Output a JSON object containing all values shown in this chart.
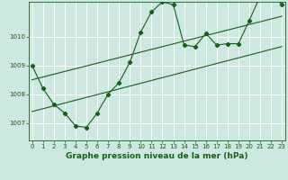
{
  "title": "Graphe pression niveau de la mer (hPa)",
  "bg_color": "#cce8e0",
  "grid_color": "#ffffff",
  "line_color": "#1a5c1a",
  "x_ticks": [
    0,
    1,
    2,
    3,
    4,
    5,
    6,
    7,
    8,
    9,
    10,
    11,
    12,
    13,
    14,
    15,
    16,
    17,
    18,
    19,
    20,
    21,
    22,
    23
  ],
  "y_ticks": [
    1007,
    1008,
    1009,
    1010
  ],
  "ylim": [
    1006.4,
    1011.2
  ],
  "xlim": [
    -0.3,
    23.3
  ],
  "data_x": [
    0,
    1,
    2,
    3,
    4,
    5,
    6,
    7,
    8,
    9,
    10,
    11,
    12,
    13,
    14,
    15,
    16,
    17,
    18,
    19,
    20,
    21,
    22,
    23
  ],
  "data_y": [
    1009.0,
    1008.2,
    1007.65,
    1007.35,
    1006.9,
    1006.85,
    1007.35,
    1008.0,
    1008.4,
    1009.1,
    1010.15,
    1010.85,
    1011.2,
    1011.1,
    1009.7,
    1009.65,
    1010.1,
    1009.7,
    1009.75,
    1009.75,
    1010.55,
    1011.4,
    1011.55,
    1011.1
  ],
  "trend1_x": [
    0,
    23
  ],
  "trend1_y": [
    1008.5,
    1010.7
  ],
  "trend2_x": [
    0,
    23
  ],
  "trend2_y": [
    1007.4,
    1009.65
  ],
  "marker": "D",
  "markersize": 2.2,
  "linewidth": 0.8,
  "title_fontsize": 6.5,
  "tick_fontsize": 5.0,
  "figsize": [
    3.2,
    2.0
  ],
  "dpi": 100
}
